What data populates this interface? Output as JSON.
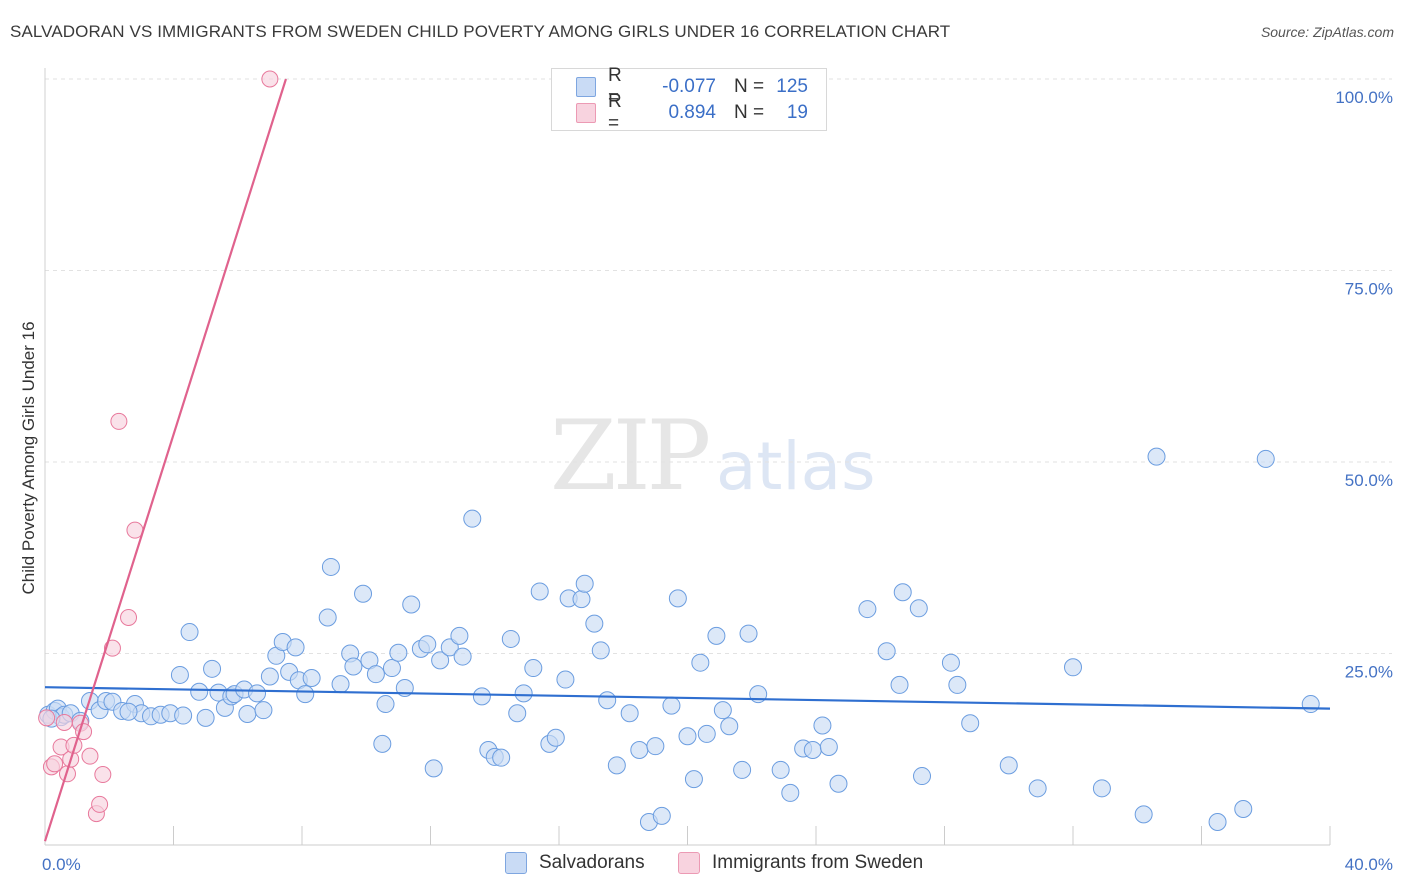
{
  "title": "SALVADORAN VS IMMIGRANTS FROM SWEDEN CHILD POVERTY AMONG GIRLS UNDER 16 CORRELATION CHART",
  "source": "Source: ZipAtlas.com",
  "watermark": {
    "zip": "ZIP",
    "atlas": "atlas"
  },
  "legend": {
    "rows": [
      {
        "r_label": "R =",
        "r_value": "-0.077",
        "n_label": "N =",
        "n_value": "125",
        "color": "#a8c6ee"
      },
      {
        "r_label": "R =",
        "r_value": "0.894",
        "n_label": "N =",
        "n_value": "19",
        "color": "#f5b8cb"
      }
    ]
  },
  "bottom_legend": {
    "series1": "Salvadorans",
    "series2": "Immigrants from Sweden"
  },
  "chart_data": {
    "type": "scatter",
    "title": "SALVADORAN VS IMMIGRANTS FROM SWEDEN CHILD POVERTY AMONG GIRLS UNDER 16 CORRELATION CHART",
    "xlabel": "",
    "ylabel": "Child Poverty Among Girls Under 16",
    "xlim": [
      0,
      40
    ],
    "ylim": [
      0,
      100
    ],
    "x_tick_labels": [
      "0.0%",
      "40.0%"
    ],
    "y_tick_labels": [
      "25.0%",
      "50.0%",
      "75.0%",
      "100.0%"
    ],
    "y_ticks": [
      25,
      50,
      75,
      100
    ],
    "colors": {
      "blue": "#6b9de0",
      "blue_fill": "#c9dbf5",
      "blue_line": "#2f6fd0",
      "pink": "#e8799c",
      "pink_fill": "#f8d3df",
      "pink_line": "#e0628d"
    },
    "series": [
      {
        "name": "Salvadorans",
        "trend": {
          "x": [
            0,
            40
          ],
          "y": [
            20.6,
            17.8
          ]
        },
        "points": [
          [
            0.1,
            17
          ],
          [
            0.3,
            17.5
          ],
          [
            0.4,
            17.8
          ],
          [
            0.5,
            16.7
          ],
          [
            0.6,
            17
          ],
          [
            0.8,
            17.2
          ],
          [
            1.1,
            16.2
          ],
          [
            1.4,
            18.8
          ],
          [
            1.7,
            17.6
          ],
          [
            1.9,
            18.8
          ],
          [
            2.1,
            18.7
          ],
          [
            2.4,
            17.5
          ],
          [
            2.8,
            18.4
          ],
          [
            3.0,
            17.2
          ],
          [
            3.3,
            16.8
          ],
          [
            3.6,
            17.0
          ],
          [
            3.9,
            17.2
          ],
          [
            4.2,
            22.2
          ],
          [
            4.3,
            16.9
          ],
          [
            4.5,
            27.8
          ],
          [
            4.8,
            20.0
          ],
          [
            5.0,
            16.6
          ],
          [
            5.2,
            23.0
          ],
          [
            5.4,
            19.9
          ],
          [
            5.6,
            17.9
          ],
          [
            5.8,
            19.4
          ],
          [
            5.9,
            19.7
          ],
          [
            6.2,
            20.3
          ],
          [
            6.3,
            17.1
          ],
          [
            6.6,
            19.8
          ],
          [
            6.8,
            17.6
          ],
          [
            7.0,
            22.0
          ],
          [
            7.2,
            24.7
          ],
          [
            7.4,
            26.5
          ],
          [
            7.6,
            22.6
          ],
          [
            7.8,
            25.8
          ],
          [
            7.9,
            21.5
          ],
          [
            8.1,
            19.7
          ],
          [
            8.3,
            21.8
          ],
          [
            8.8,
            29.7
          ],
          [
            8.9,
            36.3
          ],
          [
            9.2,
            21.0
          ],
          [
            9.5,
            25.0
          ],
          [
            9.6,
            23.3
          ],
          [
            9.9,
            32.8
          ],
          [
            10.1,
            24.1
          ],
          [
            10.3,
            22.3
          ],
          [
            10.5,
            13.2
          ],
          [
            10.6,
            18.4
          ],
          [
            10.8,
            23.1
          ],
          [
            11.0,
            25.1
          ],
          [
            11.2,
            20.5
          ],
          [
            11.4,
            31.4
          ],
          [
            11.7,
            25.6
          ],
          [
            11.9,
            26.2
          ],
          [
            12.1,
            10.0
          ],
          [
            12.3,
            24.1
          ],
          [
            12.6,
            25.8
          ],
          [
            12.9,
            27.3
          ],
          [
            13.0,
            24.6
          ],
          [
            13.3,
            42.6
          ],
          [
            13.6,
            19.4
          ],
          [
            13.8,
            12.4
          ],
          [
            14.0,
            11.5
          ],
          [
            14.2,
            11.4
          ],
          [
            14.5,
            26.9
          ],
          [
            14.7,
            17.2
          ],
          [
            14.9,
            19.8
          ],
          [
            15.2,
            23.1
          ],
          [
            15.4,
            33.1
          ],
          [
            15.7,
            13.2
          ],
          [
            15.9,
            14.0
          ],
          [
            16.2,
            21.6
          ],
          [
            16.3,
            32.2
          ],
          [
            16.7,
            32.1
          ],
          [
            16.8,
            34.1
          ],
          [
            17.1,
            28.9
          ],
          [
            17.3,
            25.4
          ],
          [
            17.5,
            18.9
          ],
          [
            17.8,
            10.4
          ],
          [
            18.2,
            17.2
          ],
          [
            18.5,
            12.4
          ],
          [
            18.8,
            3.0
          ],
          [
            19.0,
            12.9
          ],
          [
            19.2,
            3.8
          ],
          [
            19.5,
            18.2
          ],
          [
            19.7,
            32.2
          ],
          [
            20.0,
            14.2
          ],
          [
            20.2,
            8.6
          ],
          [
            20.4,
            23.8
          ],
          [
            20.6,
            14.5
          ],
          [
            20.9,
            27.3
          ],
          [
            21.1,
            17.6
          ],
          [
            21.3,
            15.5
          ],
          [
            21.7,
            9.8
          ],
          [
            21.9,
            27.6
          ],
          [
            22.2,
            19.7
          ],
          [
            22.9,
            9.8
          ],
          [
            23.2,
            6.8
          ],
          [
            23.6,
            12.6
          ],
          [
            23.9,
            12.4
          ],
          [
            24.2,
            15.6
          ],
          [
            24.4,
            12.8
          ],
          [
            24.7,
            8.0
          ],
          [
            25.6,
            30.8
          ],
          [
            26.2,
            25.3
          ],
          [
            26.6,
            20.9
          ],
          [
            26.7,
            33.0
          ],
          [
            27.2,
            30.9
          ],
          [
            27.3,
            9.0
          ],
          [
            28.2,
            23.8
          ],
          [
            28.4,
            20.9
          ],
          [
            28.8,
            15.9
          ],
          [
            30.0,
            10.4
          ],
          [
            30.9,
            7.4
          ],
          [
            32.0,
            23.2
          ],
          [
            32.9,
            7.4
          ],
          [
            34.2,
            4.0
          ],
          [
            34.6,
            50.7
          ],
          [
            36.5,
            3.0
          ],
          [
            38.0,
            50.4
          ],
          [
            37.3,
            4.7
          ],
          [
            39.4,
            18.4
          ],
          [
            0.2,
            16.5
          ],
          [
            2.6,
            17.4
          ]
        ]
      },
      {
        "name": "Immigrants from Sweden",
        "trend": {
          "x": [
            0,
            7.5
          ],
          "y": [
            0.5,
            100
          ]
        },
        "points": [
          [
            0.05,
            16.6
          ],
          [
            0.2,
            10.2
          ],
          [
            0.3,
            10.6
          ],
          [
            0.5,
            12.8
          ],
          [
            0.6,
            16.0
          ],
          [
            0.7,
            9.3
          ],
          [
            0.8,
            11.2
          ],
          [
            0.9,
            13.0
          ],
          [
            1.1,
            15.9
          ],
          [
            1.2,
            14.8
          ],
          [
            1.4,
            11.6
          ],
          [
            1.6,
            4.1
          ],
          [
            1.7,
            5.3
          ],
          [
            1.8,
            9.2
          ],
          [
            2.1,
            25.7
          ],
          [
            2.3,
            55.3
          ],
          [
            2.6,
            29.7
          ],
          [
            2.8,
            41.1
          ],
          [
            7.0,
            100
          ]
        ]
      }
    ]
  }
}
